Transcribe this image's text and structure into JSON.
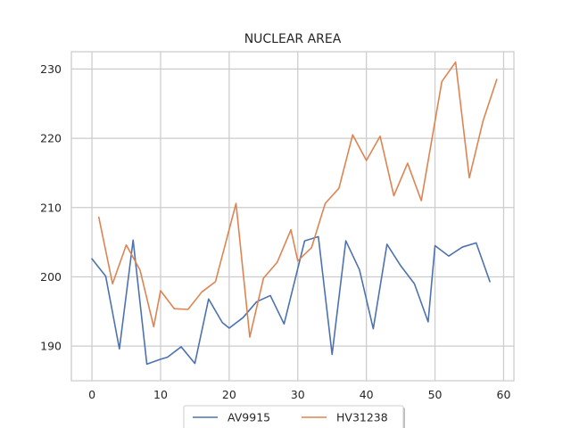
{
  "chart_data": {
    "type": "line",
    "title": "NUCLEAR AREA",
    "xlabel": "",
    "ylabel": "",
    "xlim": [
      -3,
      61.5
    ],
    "ylim": [
      185,
      232.5
    ],
    "xticks": [
      0,
      10,
      20,
      30,
      40,
      50,
      60
    ],
    "yticks": [
      190,
      200,
      210,
      220,
      230
    ],
    "grid": true,
    "legend": "bottom-center",
    "series": [
      {
        "name": "AV9915",
        "color": "#4c72b0",
        "x": [
          0,
          2,
          4,
          6,
          8,
          10,
          11,
          13,
          15,
          17,
          19,
          20,
          22,
          24,
          26,
          28,
          31,
          33,
          35,
          37,
          39,
          41,
          43,
          45,
          47,
          49,
          50,
          52,
          54,
          56,
          58
        ],
        "y": [
          202.6,
          200.1,
          189.6,
          205.3,
          187.4,
          188.1,
          188.4,
          189.9,
          187.5,
          196.8,
          193.4,
          192.6,
          194.1,
          196.4,
          197.3,
          193.2,
          205.2,
          205.8,
          188.8,
          205.2,
          201.0,
          192.5,
          204.7,
          201.6,
          199.0,
          193.5,
          204.5,
          203.0,
          204.3,
          204.9,
          199.3
        ]
      },
      {
        "name": "HV31238",
        "color": "#dd8452",
        "x": [
          1,
          3,
          5,
          7,
          9,
          10,
          12,
          14,
          16,
          18,
          21,
          23,
          25,
          27,
          29,
          30,
          32,
          34,
          36,
          38,
          40,
          42,
          44,
          46,
          48,
          51,
          53,
          55,
          57,
          59
        ],
        "y": [
          208.6,
          199.0,
          204.6,
          201.0,
          192.8,
          198.0,
          195.4,
          195.3,
          197.8,
          199.3,
          210.6,
          191.3,
          199.8,
          202.1,
          206.8,
          202.3,
          204.2,
          210.6,
          212.8,
          220.5,
          216.8,
          220.3,
          211.7,
          216.4,
          211.0,
          228.2,
          231.0,
          214.3,
          222.5,
          228.5
        ]
      }
    ]
  }
}
